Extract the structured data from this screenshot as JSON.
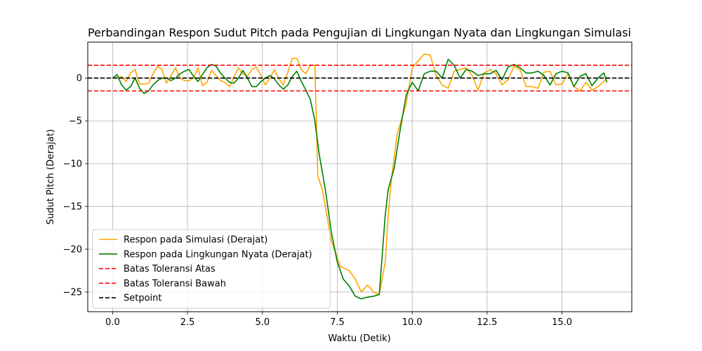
{
  "chart_data": {
    "type": "line",
    "title": "Perbandingan Respon Sudut Pitch pada Pengujian di Lingkungan Nyata dan Lingkungan Simulasi",
    "xlabel": "Waktu (Detik)",
    "ylabel": "Sudut Pitch (Derajat)",
    "xlim": [
      -0.83,
      17.33
    ],
    "ylim": [
      -27.3,
      4.2
    ],
    "xticks": [
      0.0,
      2.5,
      5.0,
      7.5,
      10.0,
      12.5,
      15.0
    ],
    "xtick_labels": [
      "0.0",
      "2.5",
      "5.0",
      "7.5",
      "10.0",
      "12.5",
      "15.0"
    ],
    "yticks": [
      0,
      -5,
      -10,
      -15,
      -20,
      -25
    ],
    "ytick_labels": [
      "0",
      "−5",
      "−10",
      "−15",
      "−20",
      "−25"
    ],
    "grid": true,
    "legend_position": "lower-left",
    "series": [
      {
        "name": "Respon pada Simulasi (Derajat)",
        "color": "#ffa500",
        "style": "solid",
        "x": [
          0.0,
          0.15,
          0.3,
          0.45,
          0.6,
          0.75,
          0.9,
          1.05,
          1.2,
          1.35,
          1.5,
          1.65,
          1.8,
          1.95,
          2.1,
          2.25,
          2.4,
          2.55,
          2.7,
          2.85,
          3.0,
          3.15,
          3.3,
          3.45,
          3.6,
          3.75,
          3.9,
          4.05,
          4.2,
          4.35,
          4.5,
          4.65,
          4.8,
          4.95,
          5.1,
          5.25,
          5.4,
          5.55,
          5.7,
          5.85,
          6.0,
          6.15,
          6.3,
          6.45,
          6.6,
          6.75,
          6.85,
          6.9,
          7.0,
          7.3,
          7.6,
          7.9,
          8.1,
          8.3,
          8.5,
          8.6,
          8.7,
          8.9,
          9.1,
          9.2,
          9.3,
          9.5,
          9.8,
          10.0,
          10.2,
          10.4,
          10.6,
          10.8,
          11.0,
          11.2,
          11.4,
          11.6,
          11.8,
          12.0,
          12.2,
          12.4,
          12.6,
          12.8,
          13.0,
          13.2,
          13.4,
          13.6,
          13.8,
          14.0,
          14.2,
          14.4,
          14.6,
          14.8,
          15.0,
          15.2,
          15.4,
          15.6,
          15.8,
          16.0,
          16.2,
          16.4,
          16.5
        ],
        "y": [
          0.0,
          0.0,
          0.2,
          -0.4,
          0.6,
          1.0,
          -0.7,
          -0.7,
          -0.6,
          0.5,
          1.4,
          1.0,
          -0.6,
          0.3,
          1.2,
          0.0,
          -0.3,
          -0.3,
          0.0,
          1.2,
          -0.9,
          -0.5,
          0.9,
          0.3,
          -0.3,
          -0.5,
          -1.0,
          0.1,
          1.2,
          0.5,
          0.2,
          1.0,
          1.3,
          0.3,
          -0.8,
          0.0,
          1.0,
          -0.1,
          -0.8,
          0.7,
          2.3,
          2.3,
          1.0,
          0.5,
          1.5,
          1.5,
          -11.5,
          -12.0,
          -13.0,
          -19.0,
          -22.0,
          -22.5,
          -23.5,
          -25.0,
          -24.2,
          -24.5,
          -25.0,
          -25.3,
          -21.5,
          -16.0,
          -12.0,
          -6.5,
          -3.0,
          1.2,
          2.0,
          2.8,
          2.7,
          0.3,
          -0.8,
          -1.2,
          0.8,
          1.0,
          1.2,
          0.3,
          -1.4,
          0.6,
          1.0,
          0.5,
          -0.8,
          -0.2,
          1.4,
          1.0,
          -1.0,
          -1.0,
          -1.2,
          0.7,
          0.8,
          -0.8,
          -0.7,
          0.5,
          -1.0,
          -1.5,
          -0.5,
          -1.4,
          -1.0,
          -0.4,
          0.0
        ]
      },
      {
        "name": "Respon pada Lingkungan Nyata (Derajat)",
        "color": "#008000",
        "style": "solid",
        "x": [
          0.0,
          0.15,
          0.3,
          0.45,
          0.6,
          0.75,
          0.9,
          1.05,
          1.2,
          1.35,
          1.5,
          1.65,
          1.8,
          1.95,
          2.1,
          2.25,
          2.4,
          2.55,
          2.7,
          2.85,
          3.0,
          3.15,
          3.3,
          3.45,
          3.6,
          3.75,
          3.9,
          4.05,
          4.2,
          4.35,
          4.5,
          4.65,
          4.8,
          4.95,
          5.1,
          5.25,
          5.4,
          5.55,
          5.7,
          5.85,
          6.0,
          6.15,
          6.3,
          6.45,
          6.6,
          6.75,
          6.9,
          7.1,
          7.3,
          7.5,
          7.7,
          7.9,
          8.1,
          8.3,
          8.5,
          8.7,
          8.9,
          9.1,
          9.2,
          9.4,
          9.6,
          9.8,
          10.0,
          10.2,
          10.4,
          10.6,
          10.8,
          11.0,
          11.2,
          11.4,
          11.6,
          11.8,
          12.0,
          12.2,
          12.4,
          12.6,
          12.8,
          13.0,
          13.2,
          13.4,
          13.6,
          13.8,
          14.0,
          14.2,
          14.4,
          14.6,
          14.8,
          15.0,
          15.2,
          15.4,
          15.6,
          15.8,
          16.0,
          16.2,
          16.4,
          16.5
        ],
        "y": [
          0.0,
          0.4,
          -0.8,
          -1.4,
          -1.0,
          0.0,
          -1.2,
          -1.8,
          -1.5,
          -0.8,
          -0.3,
          0.0,
          0.0,
          -0.3,
          0.0,
          0.5,
          0.8,
          1.0,
          0.2,
          -0.4,
          0.4,
          1.2,
          1.6,
          1.4,
          0.6,
          0.0,
          -0.5,
          -0.6,
          0.0,
          0.9,
          0.0,
          -1.0,
          -1.0,
          -0.4,
          0.0,
          0.3,
          -0.1,
          -0.8,
          -1.3,
          -0.8,
          0.2,
          0.8,
          -0.4,
          -1.4,
          -2.5,
          -5.0,
          -9.0,
          -13.0,
          -18.0,
          -21.5,
          -23.5,
          -24.3,
          -25.5,
          -25.8,
          -25.6,
          -25.5,
          -25.3,
          -16.0,
          -13.0,
          -10.5,
          -6.0,
          -2.0,
          -0.5,
          -1.5,
          0.5,
          0.8,
          0.8,
          0.0,
          2.2,
          1.5,
          0.0,
          1.0,
          0.8,
          0.3,
          0.5,
          0.5,
          0.9,
          -0.2,
          1.3,
          1.6,
          1.2,
          0.6,
          0.6,
          0.8,
          0.3,
          -0.8,
          0.5,
          0.8,
          0.6,
          -1.0,
          0.2,
          0.5,
          -0.9,
          0.0,
          0.6,
          -0.5
        ]
      },
      {
        "name": "Batas Toleransi Atas",
        "color": "#ff0000",
        "style": "dashed",
        "x": [
          -0.83,
          17.33
        ],
        "y": [
          1.5,
          1.5
        ]
      },
      {
        "name": "Batas Toleransi Bawah",
        "color": "#ff0000",
        "style": "dashed",
        "x": [
          -0.83,
          17.33
        ],
        "y": [
          -1.5,
          -1.5
        ]
      },
      {
        "name": "Setpoint",
        "color": "#000000",
        "style": "dashed",
        "x": [
          -0.83,
          17.33
        ],
        "y": [
          0,
          0
        ]
      }
    ]
  }
}
